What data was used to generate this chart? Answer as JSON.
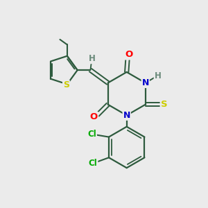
{
  "bg_color": "#ebebeb",
  "bond_color": "#2d5a3d",
  "atom_colors": {
    "O": "#ff0000",
    "N": "#0000cc",
    "S": "#cccc00",
    "Cl": "#00aa00",
    "H": "#6a8a7a",
    "C": "#2d5a3d"
  }
}
